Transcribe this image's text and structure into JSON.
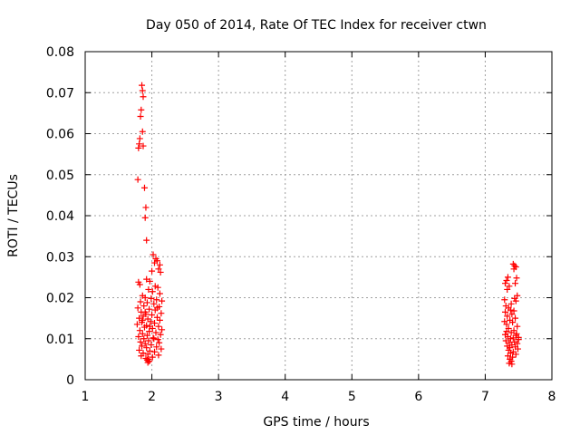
{
  "chart_data": {
    "type": "scatter",
    "title": "Day 050 of 2014, Rate Of TEC Index for receiver ctwn",
    "xlabel": "GPS time / hours",
    "ylabel": "ROTI / TECUs",
    "xlim": [
      1,
      8
    ],
    "ylim": [
      0,
      0.08
    ],
    "xticks": [
      1,
      2,
      3,
      4,
      5,
      6,
      7,
      8
    ],
    "yticks": [
      0,
      0.01,
      0.02,
      0.03,
      0.04,
      0.05,
      0.06,
      0.07,
      0.08
    ],
    "xtick_labels": [
      "1",
      "2",
      "3",
      "4",
      "5",
      "6",
      "7",
      "8"
    ],
    "ytick_labels": [
      "0",
      "0.01",
      "0.02",
      "0.03",
      "0.04",
      "0.05",
      "0.06",
      "0.07",
      "0.08"
    ],
    "grid": true,
    "marker": "+",
    "series": [
      {
        "name": "ROTI",
        "color": "#ff0000",
        "points": [
          [
            1.85,
            0.0718
          ],
          [
            1.86,
            0.0705
          ],
          [
            1.87,
            0.069
          ],
          [
            1.84,
            0.0658
          ],
          [
            1.83,
            0.0642
          ],
          [
            1.86,
            0.0605
          ],
          [
            1.82,
            0.0588
          ],
          [
            1.81,
            0.0575
          ],
          [
            1.87,
            0.057
          ],
          [
            1.8,
            0.0565
          ],
          [
            1.79,
            0.0488
          ],
          [
            1.89,
            0.0468
          ],
          [
            1.91,
            0.042
          ],
          [
            1.9,
            0.0395
          ],
          [
            1.92,
            0.034
          ],
          [
            2.02,
            0.0305
          ],
          [
            2.06,
            0.0295
          ],
          [
            2.08,
            0.029
          ],
          [
            2.04,
            0.0285
          ],
          [
            2.12,
            0.028
          ],
          [
            2.1,
            0.027
          ],
          [
            2.13,
            0.0262
          ],
          [
            2.0,
            0.0265
          ],
          [
            1.92,
            0.0245
          ],
          [
            1.97,
            0.024
          ],
          [
            1.8,
            0.0238
          ],
          [
            1.82,
            0.0232
          ],
          [
            2.05,
            0.0228
          ],
          [
            2.09,
            0.0225
          ],
          [
            1.95,
            0.022
          ],
          [
            2.01,
            0.0215
          ],
          [
            2.12,
            0.021
          ],
          [
            1.86,
            0.0205
          ],
          [
            1.9,
            0.02
          ],
          [
            1.99,
            0.0198
          ],
          [
            2.07,
            0.0195
          ],
          [
            2.15,
            0.0192
          ],
          [
            1.83,
            0.019
          ],
          [
            1.93,
            0.0188
          ],
          [
            2.03,
            0.0185
          ],
          [
            1.88,
            0.018
          ],
          [
            2.11,
            0.0178
          ],
          [
            1.79,
            0.0175
          ],
          [
            1.96,
            0.0172
          ],
          [
            2.05,
            0.017
          ],
          [
            1.84,
            0.0165
          ],
          [
            2.14,
            0.0162
          ],
          [
            1.91,
            0.016
          ],
          [
            2.0,
            0.0158
          ],
          [
            1.87,
            0.0155
          ],
          [
            2.08,
            0.0152
          ],
          [
            1.81,
            0.015
          ],
          [
            1.94,
            0.0148
          ],
          [
            2.12,
            0.0145
          ],
          [
            1.98,
            0.0142
          ],
          [
            1.85,
            0.014
          ],
          [
            2.04,
            0.0138
          ],
          [
            1.78,
            0.0135
          ],
          [
            1.92,
            0.0132
          ],
          [
            2.1,
            0.013
          ],
          [
            1.89,
            0.0128
          ],
          [
            2.01,
            0.0125
          ],
          [
            2.15,
            0.0122
          ],
          [
            1.82,
            0.012
          ],
          [
            1.96,
            0.0118
          ],
          [
            2.06,
            0.0115
          ],
          [
            1.86,
            0.0112
          ],
          [
            2.13,
            0.011
          ],
          [
            1.93,
            0.0108
          ],
          [
            1.8,
            0.0105
          ],
          [
            2.02,
            0.0102
          ],
          [
            1.88,
            0.01
          ],
          [
            2.09,
            0.0098
          ],
          [
            1.95,
            0.0095
          ],
          [
            1.83,
            0.0092
          ],
          [
            2.11,
            0.009
          ],
          [
            1.9,
            0.0088
          ],
          [
            1.99,
            0.0085
          ],
          [
            1.85,
            0.0082
          ],
          [
            2.07,
            0.008
          ],
          [
            1.92,
            0.0078
          ],
          [
            2.14,
            0.0075
          ],
          [
            1.81,
            0.0072
          ],
          [
            1.97,
            0.007
          ],
          [
            2.04,
            0.0068
          ],
          [
            1.87,
            0.0065
          ],
          [
            1.94,
            0.0062
          ],
          [
            2.1,
            0.006
          ],
          [
            1.84,
            0.0058
          ],
          [
            2.01,
            0.0055
          ],
          [
            1.91,
            0.0052
          ],
          [
            1.95,
            0.005
          ],
          [
            1.93,
            0.0048
          ],
          [
            1.96,
            0.0045
          ],
          [
            1.94,
            0.0042
          ],
          [
            1.9,
            0.0165
          ],
          [
            1.97,
            0.013
          ],
          [
            2.03,
            0.01
          ],
          [
            1.86,
            0.0145
          ],
          [
            2.08,
            0.0175
          ],
          [
            7.34,
            0.025
          ],
          [
            7.32,
            0.0242
          ],
          [
            7.3,
            0.0235
          ],
          [
            7.36,
            0.0228
          ],
          [
            7.33,
            0.022
          ],
          [
            7.42,
            0.0282
          ],
          [
            7.44,
            0.0278
          ],
          [
            7.46,
            0.0275
          ],
          [
            7.43,
            0.027
          ],
          [
            7.47,
            0.0248
          ],
          [
            7.45,
            0.0235
          ],
          [
            7.48,
            0.0205
          ],
          [
            7.44,
            0.0198
          ],
          [
            7.46,
            0.0192
          ],
          [
            7.29,
            0.0195
          ],
          [
            7.31,
            0.018
          ],
          [
            7.35,
            0.0175
          ],
          [
            7.38,
            0.017
          ],
          [
            7.3,
            0.0165
          ],
          [
            7.4,
            0.016
          ],
          [
            7.33,
            0.0155
          ],
          [
            7.45,
            0.015
          ],
          [
            7.37,
            0.0145
          ],
          [
            7.41,
            0.014
          ],
          [
            7.32,
            0.0135
          ],
          [
            7.48,
            0.013
          ],
          [
            7.35,
            0.0125
          ],
          [
            7.43,
            0.012
          ],
          [
            7.39,
            0.0115
          ],
          [
            7.3,
            0.011
          ],
          [
            7.46,
            0.0108
          ],
          [
            7.34,
            0.0105
          ],
          [
            7.42,
            0.0102
          ],
          [
            7.38,
            0.01
          ],
          [
            7.5,
            0.0098
          ],
          [
            7.31,
            0.0095
          ],
          [
            7.44,
            0.0092
          ],
          [
            7.36,
            0.009
          ],
          [
            7.48,
            0.0088
          ],
          [
            7.4,
            0.0085
          ],
          [
            7.33,
            0.0082
          ],
          [
            7.45,
            0.008
          ],
          [
            7.37,
            0.0078
          ],
          [
            7.49,
            0.0075
          ],
          [
            7.35,
            0.0072
          ],
          [
            7.42,
            0.0068
          ],
          [
            7.38,
            0.0065
          ],
          [
            7.46,
            0.0062
          ],
          [
            7.34,
            0.0058
          ],
          [
            7.41,
            0.0055
          ],
          [
            7.37,
            0.005
          ],
          [
            7.39,
            0.0045
          ],
          [
            7.36,
            0.004
          ],
          [
            7.4,
            0.0038
          ],
          [
            7.32,
            0.0118
          ],
          [
            7.47,
            0.0112
          ],
          [
            7.5,
            0.0103
          ],
          [
            7.29,
            0.0142
          ],
          [
            7.43,
            0.0168
          ],
          [
            7.39,
            0.0185
          ]
        ]
      }
    ]
  }
}
